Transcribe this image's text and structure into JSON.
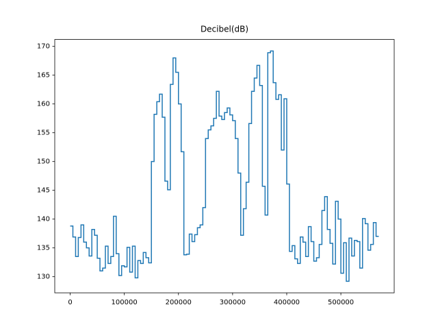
{
  "chart_data": {
    "type": "step",
    "title": "Decibel(dB)",
    "x": [
      0,
      5000,
      10000,
      15000,
      20000,
      25000,
      30000,
      35000,
      40000,
      45000,
      50000,
      55000,
      60000,
      65000,
      70000,
      75000,
      80000,
      85000,
      90000,
      95000,
      100000,
      105000,
      110000,
      115000,
      120000,
      125000,
      130000,
      135000,
      140000,
      145000,
      150000,
      155000,
      160000,
      165000,
      170000,
      175000,
      180000,
      185000,
      190000,
      195000,
      200000,
      205000,
      210000,
      215000,
      220000,
      225000,
      230000,
      235000,
      240000,
      245000,
      250000,
      255000,
      260000,
      265000,
      270000,
      275000,
      280000,
      285000,
      290000,
      295000,
      300000,
      305000,
      310000,
      315000,
      320000,
      325000,
      330000,
      335000,
      340000,
      345000,
      350000,
      355000,
      360000,
      365000,
      370000,
      375000,
      380000,
      385000,
      390000,
      395000,
      400000,
      405000,
      410000,
      415000,
      420000,
      425000,
      430000,
      435000,
      440000,
      445000,
      450000,
      455000,
      460000,
      465000,
      470000,
      475000,
      480000,
      485000,
      490000,
      495000,
      500000,
      505000,
      510000,
      515000,
      520000,
      525000,
      530000,
      535000,
      540000,
      545000,
      550000,
      555000,
      560000,
      565000,
      570000
    ],
    "series": [
      {
        "color": "#1f77b4",
        "values": [
          138.8,
          138.8,
          136.9,
          133.5,
          136.8,
          139.0,
          136.0,
          135.0,
          133.6,
          138.2,
          137.2,
          133.2,
          131.0,
          131.5,
          135.3,
          132.3,
          133.5,
          140.5,
          134.0,
          130.2,
          131.9,
          131.7,
          135.1,
          130.8,
          135.3,
          129.8,
          132.8,
          132.3,
          134.2,
          133.3,
          132.4,
          150.0,
          158.2,
          160.4,
          161.7,
          157.7,
          146.6,
          145.1,
          163.4,
          168.0,
          165.5,
          160.0,
          151.7,
          133.8,
          133.9,
          137.4,
          136.1,
          137.3,
          138.5,
          139.0,
          142.0,
          154.0,
          155.5,
          156.2,
          157.5,
          162.2,
          157.9,
          157.3,
          158.5,
          159.3,
          158.1,
          157.1,
          154.0,
          148.0,
          137.2,
          141.8,
          146.4,
          156.6,
          162.2,
          164.5,
          166.7,
          163.2,
          145.7,
          140.7,
          168.9,
          169.2,
          163.7,
          160.8,
          161.6,
          152.0,
          160.9,
          146.1,
          134.4,
          135.4,
          133.1,
          132.3,
          136.9,
          136.0,
          133.5,
          138.7,
          136.1,
          132.7,
          133.3,
          135.6,
          141.5,
          143.9,
          138.2,
          135.8,
          132.2,
          143.1,
          140.0,
          130.6,
          135.9,
          129.2,
          136.7,
          133.6,
          136.3,
          136.1,
          131.5,
          140.1,
          139.2,
          134.6,
          135.6,
          139.4,
          137.0
        ]
      }
    ],
    "xlim": [
      -28500,
      598500
    ],
    "xticks": [
      0,
      100000,
      200000,
      300000,
      400000,
      500000
    ],
    "ylim": [
      127.2,
      171.2
    ],
    "yticks": [
      130,
      135,
      140,
      145,
      150,
      155,
      160,
      165,
      170
    ]
  }
}
